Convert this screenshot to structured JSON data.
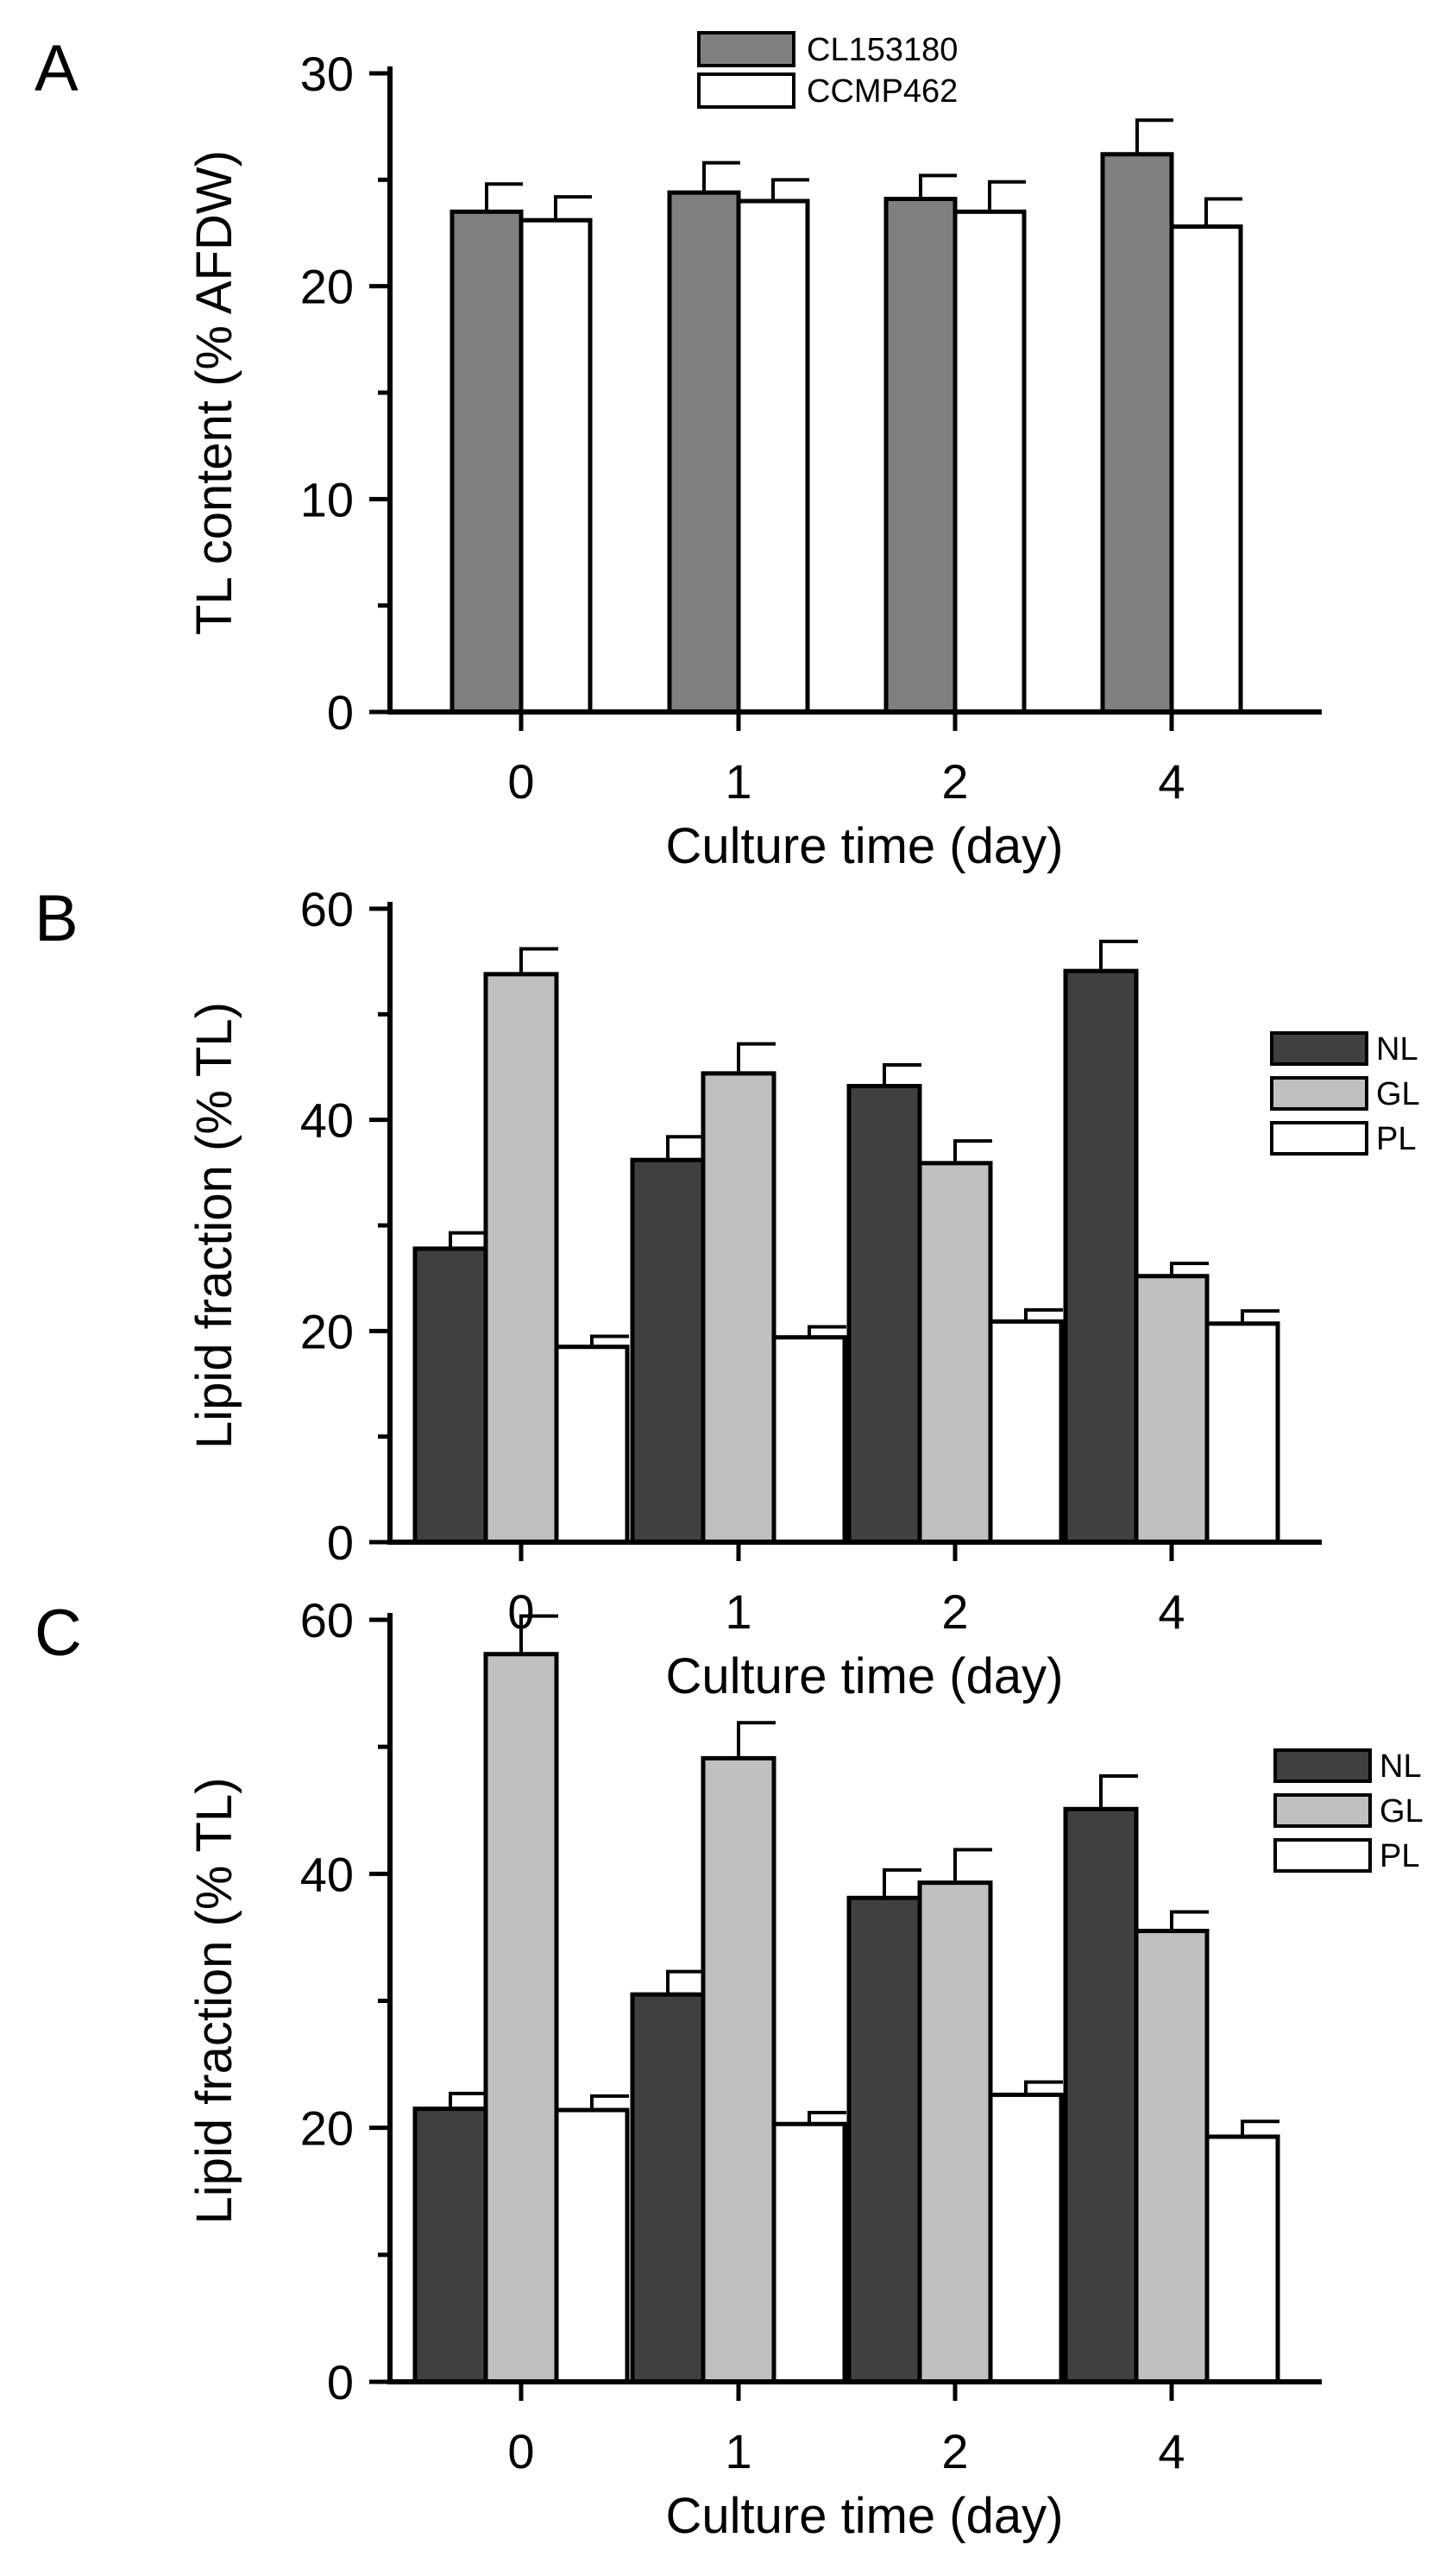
{
  "chart_data": [
    {
      "id": "A",
      "panel_label": "A",
      "type": "bar",
      "title": "",
      "xlabel": "Culture time (day)",
      "ylabel": "TL content (% AFDW)",
      "categories": [
        "0",
        "1",
        "2",
        "4"
      ],
      "ylim": [
        0,
        30
      ],
      "yticks": [
        0,
        10,
        20,
        30
      ],
      "legend_position": "top-center",
      "series": [
        {
          "name": "CL153180",
          "color": "#808080",
          "values": [
            23.5,
            24.4,
            24.1,
            26.2
          ],
          "errors": [
            1.3,
            1.4,
            1.1,
            1.6
          ]
        },
        {
          "name": "CCMP462",
          "color": "#ffffff",
          "values": [
            23.1,
            24.0,
            23.5,
            22.8
          ],
          "errors": [
            1.1,
            1.0,
            1.4,
            1.3
          ]
        }
      ]
    },
    {
      "id": "B",
      "panel_label": "B",
      "type": "bar",
      "title": "",
      "xlabel": "Culture time (day)",
      "ylabel": "Lipid fraction (% TL)",
      "categories": [
        "0",
        "1",
        "2",
        "4"
      ],
      "ylim": [
        0,
        60
      ],
      "yticks": [
        0,
        20,
        40,
        60
      ],
      "legend_position": "right",
      "series": [
        {
          "name": "NL",
          "color": "#404040",
          "values": [
            27.8,
            36.2,
            43.2,
            54.1
          ],
          "errors": [
            1.5,
            2.2,
            2.0,
            2.8
          ]
        },
        {
          "name": "GL",
          "color": "#c0c0c0",
          "values": [
            53.8,
            44.4,
            35.9,
            25.2
          ],
          "errors": [
            2.4,
            2.8,
            2.1,
            1.2
          ]
        },
        {
          "name": "PL",
          "color": "#ffffff",
          "values": [
            18.5,
            19.4,
            20.9,
            20.7
          ],
          "errors": [
            1.0,
            1.0,
            1.1,
            1.2
          ]
        }
      ]
    },
    {
      "id": "C",
      "panel_label": "C",
      "type": "bar",
      "title": "",
      "xlabel": "Culture time (day)",
      "ylabel": "Lipid fraction (% TL)",
      "categories": [
        "0",
        "1",
        "2",
        "4"
      ],
      "ylim": [
        0,
        60
      ],
      "yticks": [
        0,
        20,
        40,
        60
      ],
      "legend_position": "right",
      "series": [
        {
          "name": "NL",
          "color": "#404040",
          "values": [
            21.5,
            30.5,
            38.1,
            45.1
          ],
          "errors": [
            1.2,
            1.8,
            2.2,
            2.6
          ]
        },
        {
          "name": "GL",
          "color": "#c0c0c0",
          "values": [
            57.3,
            49.1,
            39.3,
            35.5
          ],
          "errors": [
            3.0,
            2.8,
            2.6,
            1.5
          ]
        },
        {
          "name": "PL",
          "color": "#ffffff",
          "values": [
            21.4,
            20.3,
            22.6,
            19.3
          ],
          "errors": [
            1.1,
            0.9,
            1.0,
            1.2
          ]
        }
      ]
    }
  ]
}
